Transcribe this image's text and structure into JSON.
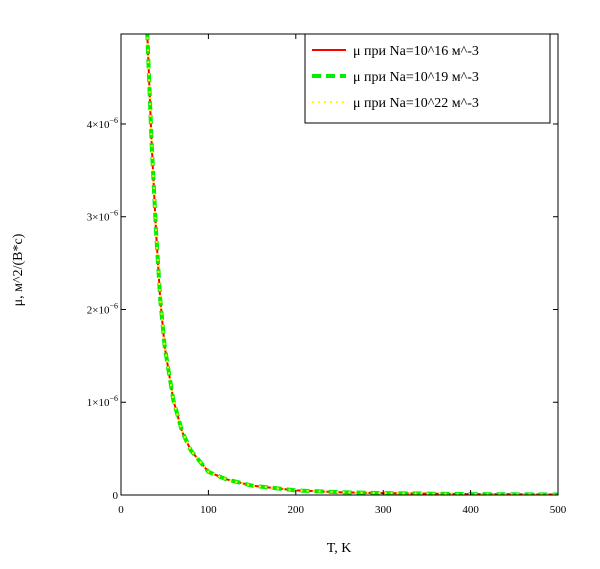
{
  "chart_data": {
    "type": "line",
    "title": "",
    "xlabel": "T, K",
    "ylabel": "μ, м^2/(В*с)",
    "xlim": [
      0,
      500
    ],
    "ylim": [
      0,
      4.97e-06
    ],
    "grid": false,
    "legend_position": "top-right",
    "x_ticks": [
      {
        "value": 0,
        "label": "0"
      },
      {
        "value": 100,
        "label": "100"
      },
      {
        "value": 200,
        "label": "200"
      },
      {
        "value": 300,
        "label": "300"
      },
      {
        "value": 400,
        "label": "400"
      },
      {
        "value": 500,
        "label": "500"
      }
    ],
    "y_ticks": [
      {
        "value": 0,
        "label": "0",
        "exp": ""
      },
      {
        "value": 1e-06,
        "label": "1×10",
        "exp": "−6"
      },
      {
        "value": 2e-06,
        "label": "2×10",
        "exp": "−6"
      },
      {
        "value": 3e-06,
        "label": "3×10",
        "exp": "−6"
      },
      {
        "value": 4e-06,
        "label": "4×10",
        "exp": "−6"
      }
    ],
    "series": [
      {
        "name": "μ при Na=10^16 м^-3",
        "color": "#ff0000",
        "style": "solid",
        "x": [
          30,
          35,
          40,
          45,
          50,
          60,
          70,
          80,
          100,
          120,
          150,
          200,
          250,
          300,
          400,
          500
        ],
        "y": [
          5e-06,
          3.8e-06,
          2.85e-06,
          2.1e-06,
          1.6e-06,
          1.02e-06,
          6.8e-07,
          4.8e-07,
          2.5e-07,
          1.7e-07,
          1e-07,
          5e-08,
          3e-08,
          2e-08,
          1e-08,
          5e-09
        ]
      },
      {
        "name": "μ при Na=10^19 м^-3",
        "color": "#00ee00",
        "style": "dashed",
        "x": [
          30,
          35,
          40,
          45,
          50,
          60,
          70,
          80,
          100,
          120,
          150,
          200,
          250,
          300,
          400,
          500
        ],
        "y": [
          5e-06,
          3.8e-06,
          2.85e-06,
          2.1e-06,
          1.6e-06,
          1.02e-06,
          6.8e-07,
          4.8e-07,
          2.5e-07,
          1.7e-07,
          1e-07,
          5e-08,
          3e-08,
          2e-08,
          1e-08,
          5e-09
        ]
      },
      {
        "name": "μ при Na=10^22 м^-3",
        "color": "#ffff00",
        "style": "dotted",
        "x": [
          30,
          35,
          40,
          45,
          50,
          60,
          70,
          80,
          100,
          120,
          150,
          200,
          250,
          300,
          400,
          500
        ],
        "y": [
          5e-06,
          3.8e-06,
          2.85e-06,
          2.1e-06,
          1.6e-06,
          1.02e-06,
          6.8e-07,
          4.8e-07,
          2.5e-07,
          1.7e-07,
          1e-07,
          5e-08,
          3e-08,
          2e-08,
          1e-08,
          5e-09
        ]
      }
    ]
  }
}
